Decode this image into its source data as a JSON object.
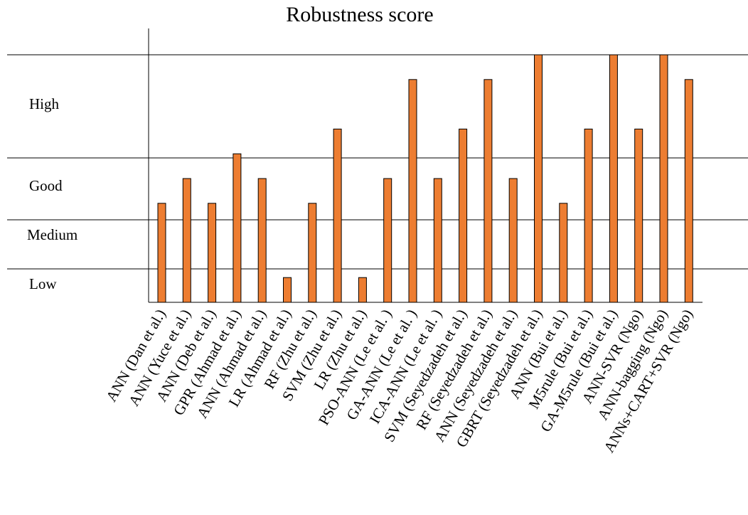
{
  "chart_data": {
    "type": "bar",
    "title": "Robustness score",
    "xlabel": "",
    "ylabel": "",
    "bands": [
      "Low",
      "Medium",
      "Good",
      "High"
    ],
    "categories": [
      "ANN (Dan et al.)",
      "ANN (Yuce et al.)",
      "ANN (Deb et al.)",
      "GPR (Ahmad et al.)",
      "ANN (Ahmad et al.)",
      "LR (Ahmad et al.)",
      "RF (Zhu et al.)",
      "SVM (Zhu et al.)",
      "LR (Zhu et al.)",
      "PSO-ANN (Le et al. )",
      "GA-ANN (Le et al. )",
      "ICA-ANN (Le et al. )",
      "SVM (Seyedzadeh et al.)",
      "RF (Seyedzadeh et al.)",
      "ANN (Seyedzadeh et al.)",
      "GBRT (Seyedzadeh et al.)",
      "ANN (Bui et al.)",
      "M5rule (Bui et al.)",
      "GA-M5rule (Bui et al.)",
      "ANN-SVR (Ngo)",
      "ANN-bagging (Ngo)",
      "ANNs+CART+SVR (Ngo)"
    ],
    "values": [
      2.0,
      2.5,
      2.0,
      3.0,
      2.5,
      0.5,
      2.0,
      3.5,
      0.5,
      2.5,
      4.5,
      2.5,
      3.5,
      4.5,
      2.5,
      5.0,
      2.0,
      3.5,
      5.0,
      3.5,
      5.0,
      4.5
    ],
    "ylim": [
      0,
      5
    ],
    "grid": true,
    "bar_color": "#ED7D31",
    "bar_stroke": "#000000"
  }
}
